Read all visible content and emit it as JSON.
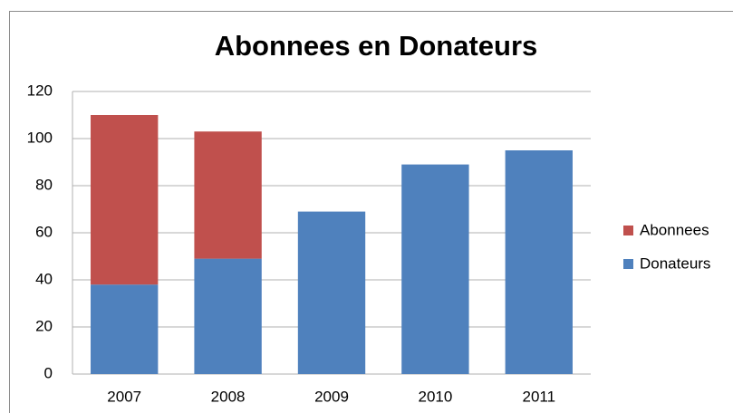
{
  "chart_data": {
    "type": "stacked_bar",
    "title": "Abonnees en Donateurs",
    "categories": [
      "2007",
      "2008",
      "2009",
      "2010",
      "2011"
    ],
    "series": [
      {
        "name": "Donateurs",
        "color": "#4f81bd",
        "values": [
          38,
          49,
          69,
          89,
          95
        ]
      },
      {
        "name": "Abonnees",
        "color": "#c0504d",
        "values": [
          72,
          54,
          0,
          0,
          0
        ]
      }
    ],
    "ylim": [
      0,
      120
    ],
    "yticks": [
      0,
      20,
      40,
      60,
      80,
      100,
      120
    ],
    "grid": true,
    "legend": "right"
  }
}
